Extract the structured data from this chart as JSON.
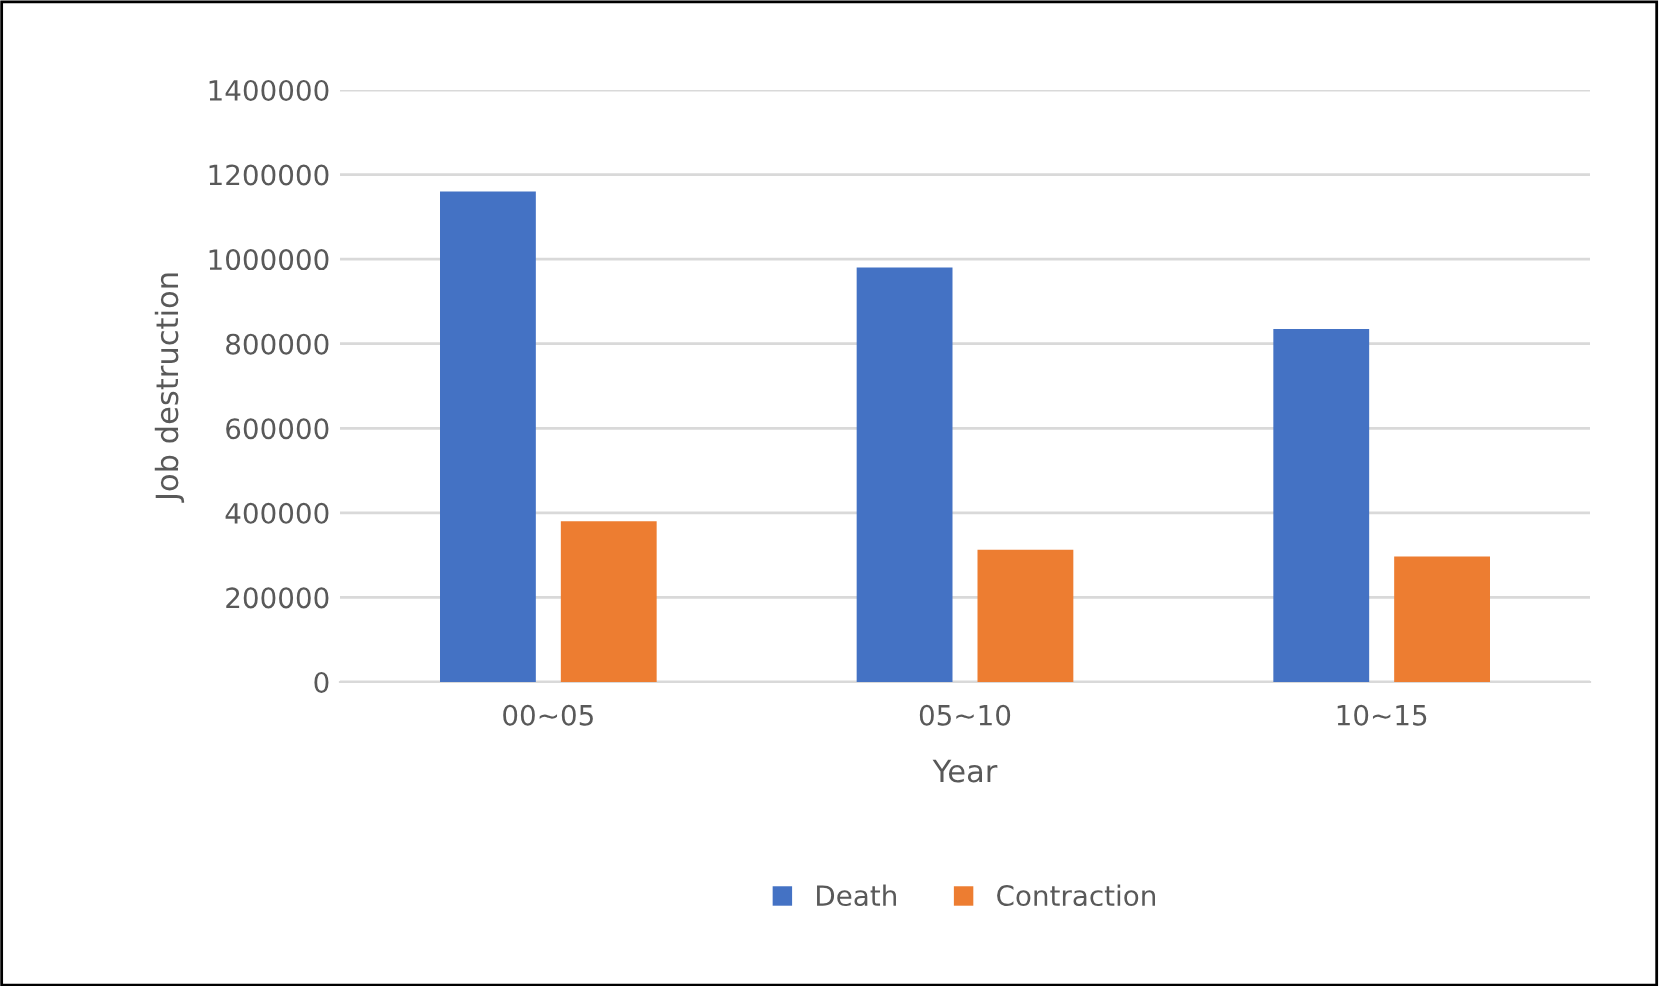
{
  "chart_data": {
    "type": "bar",
    "xlabel": "Year",
    "ylabel": "Job destruction",
    "categories": [
      "00~05",
      "05~10",
      "10~15"
    ],
    "series": [
      {
        "name": "Death",
        "color": "#4472c4",
        "values": [
          1160000,
          980000,
          835000
        ]
      },
      {
        "name": "Contraction",
        "color": "#ed7d31",
        "values": [
          380000,
          313000,
          297000
        ]
      }
    ],
    "ylim": [
      0,
      1400000
    ],
    "yticks": [
      0,
      200000,
      400000,
      600000,
      800000,
      1000000,
      1200000,
      1400000
    ],
    "grid": "y",
    "legend": "bottom"
  }
}
